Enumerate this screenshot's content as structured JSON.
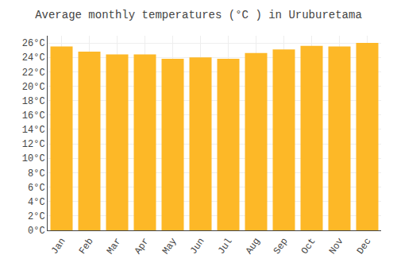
{
  "chart_data": {
    "type": "bar",
    "title": "Average monthly temperatures (°C ) in Uruburetama",
    "categories": [
      "Jan",
      "Feb",
      "Mar",
      "Apr",
      "May",
      "Jun",
      "Jul",
      "Aug",
      "Sep",
      "Oct",
      "Nov",
      "Dec"
    ],
    "values": [
      25.5,
      24.8,
      24.4,
      24.4,
      23.8,
      24.0,
      23.8,
      24.6,
      25.1,
      25.6,
      25.5,
      26.0
    ],
    "color": "#FDB827",
    "ylim": [
      0,
      27
    ],
    "yticks": [
      {
        "value": 0,
        "label": "0°C"
      },
      {
        "value": 2,
        "label": "2°C"
      },
      {
        "value": 4,
        "label": "4°C"
      },
      {
        "value": 6,
        "label": "6°C"
      },
      {
        "value": 8,
        "label": "8°C"
      },
      {
        "value": 10,
        "label": "10°C"
      },
      {
        "value": 12,
        "label": "12°C"
      },
      {
        "value": 14,
        "label": "14°C"
      },
      {
        "value": 16,
        "label": "16°C"
      },
      {
        "value": 18,
        "label": "18°C"
      },
      {
        "value": 20,
        "label": "20°C"
      },
      {
        "value": 22,
        "label": "22°C"
      },
      {
        "value": 24,
        "label": "24°C"
      },
      {
        "value": 26,
        "label": "26°C"
      }
    ],
    "grid": true
  }
}
